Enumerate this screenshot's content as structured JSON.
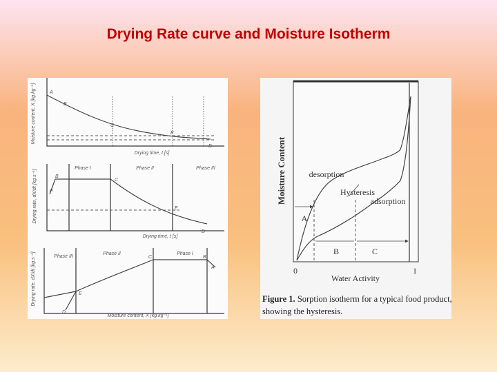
{
  "title": "Drying Rate curve and Moisture Isotherm",
  "left_figure": {
    "panel1": {
      "ylabel": "Moisture content, X [kg.kg⁻¹]",
      "xlabel": "Drying time, t [s]",
      "points": [
        "A",
        "B",
        "C",
        "E",
        "D"
      ]
    },
    "panel2": {
      "ylabel": "Drying rate, dX/dt [kg.s⁻¹]",
      "xlabel": "Drying time, t [s]",
      "phases": [
        "Phase I",
        "Phase II",
        "Phase III"
      ],
      "points": [
        "A",
        "B",
        "C",
        "E",
        "D"
      ]
    },
    "panel3": {
      "ylabel": "Drying rate, dX/dt [kg.s⁻¹]",
      "xlabel": "Moisture content, X [kg.kg⁻¹]",
      "phases": [
        "Phase III",
        "Phase II",
        "Phase I"
      ],
      "points": [
        "E",
        "D",
        "C",
        "B",
        "A"
      ]
    }
  },
  "right_figure": {
    "ylabel": "Moisture Content",
    "xlabel": "Water Activity",
    "curves": [
      "desorption",
      "Hysteresis",
      "adsorption"
    ],
    "regions": [
      "A",
      "B",
      "C"
    ],
    "xticks": [
      "0",
      "1"
    ],
    "caption": {
      "label": "Figure 1.",
      "lines": [
        "Sorption isotherm for a typical food product,",
        "showing the hysteresis."
      ]
    }
  }
}
